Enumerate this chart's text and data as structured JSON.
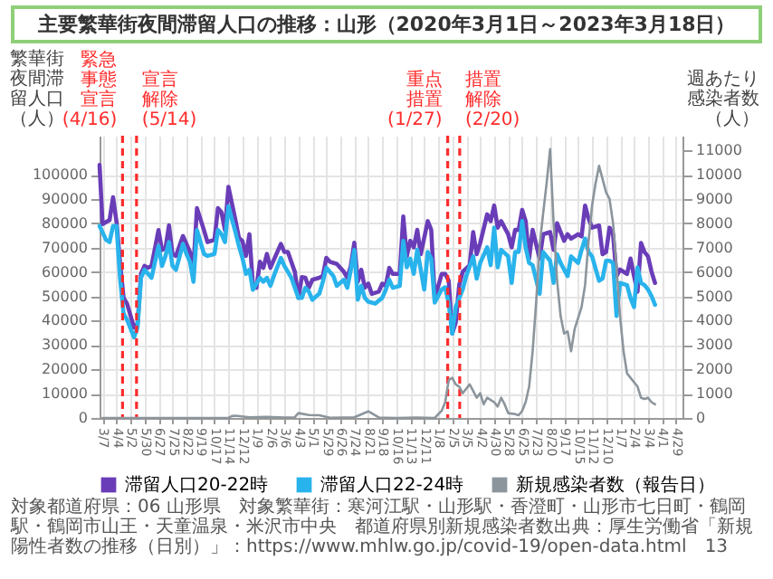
{
  "chart_data": {
    "type": "line",
    "title": "主要繁華街夜間滞留人口の推移：山形（2020年3月1日～2023年3月18日）",
    "ylabel": "繁華街夜間滞留人口（人）",
    "y2label": "週あたり感染者数（人）",
    "xlim": [
      "2020-03-01",
      "2023-05-12"
    ],
    "xticks": [
      {
        "value": "2020-03-07",
        "label": "3/7"
      },
      {
        "value": "2020-04-04",
        "label": "4/4"
      },
      {
        "value": "2020-05-02",
        "label": "5/2"
      },
      {
        "value": "2020-05-30",
        "label": "5/30"
      },
      {
        "value": "2020-06-27",
        "label": "6/27"
      },
      {
        "value": "2020-07-25",
        "label": "7/25"
      },
      {
        "value": "2020-08-22",
        "label": "8/22"
      },
      {
        "value": "2020-09-19",
        "label": "9/19"
      },
      {
        "value": "2020-10-17",
        "label": "10/17"
      },
      {
        "value": "2020-11-14",
        "label": "11/14"
      },
      {
        "value": "2020-12-12",
        "label": "12/12"
      },
      {
        "value": "2021-01-09",
        "label": "1/9"
      },
      {
        "value": "2021-02-06",
        "label": "2/6"
      },
      {
        "value": "2021-03-06",
        "label": "3/6"
      },
      {
        "value": "2021-04-03",
        "label": "4/3"
      },
      {
        "value": "2021-05-01",
        "label": "5/1"
      },
      {
        "value": "2021-05-29",
        "label": "5/29"
      },
      {
        "value": "2021-06-26",
        "label": "6/26"
      },
      {
        "value": "2021-07-24",
        "label": "7/24"
      },
      {
        "value": "2021-08-21",
        "label": "8/21"
      },
      {
        "value": "2021-09-18",
        "label": "9/18"
      },
      {
        "value": "2021-10-16",
        "label": "10/16"
      },
      {
        "value": "2021-11-13",
        "label": "11/13"
      },
      {
        "value": "2021-12-11",
        "label": "12/11"
      },
      {
        "value": "2022-01-08",
        "label": "1/8"
      },
      {
        "value": "2022-02-05",
        "label": "2/5"
      },
      {
        "value": "2022-03-05",
        "label": "3/5"
      },
      {
        "value": "2022-04-02",
        "label": "4/2"
      },
      {
        "value": "2022-04-30",
        "label": "4/30"
      },
      {
        "value": "2022-05-28",
        "label": "5/28"
      },
      {
        "value": "2022-06-25",
        "label": "6/25"
      },
      {
        "value": "2022-07-23",
        "label": "7/23"
      },
      {
        "value": "2022-08-20",
        "label": "8/20"
      },
      {
        "value": "2022-09-17",
        "label": "9/17"
      },
      {
        "value": "2022-10-15",
        "label": "10/15"
      },
      {
        "value": "2022-11-12",
        "label": "11/12"
      },
      {
        "value": "2022-12-10",
        "label": "12/10"
      },
      {
        "value": "2023-01-07",
        "label": "1/7"
      },
      {
        "value": "2023-02-04",
        "label": "2/4"
      },
      {
        "value": "2023-03-04",
        "label": "3/4"
      },
      {
        "value": "2023-04-01",
        "label": "4/1"
      },
      {
        "value": "2023-04-29",
        "label": "4/29"
      }
    ],
    "ylim": [
      0,
      116000
    ],
    "yticks": [
      0,
      10000,
      20000,
      30000,
      40000,
      50000,
      60000,
      70000,
      80000,
      90000,
      100000
    ],
    "y2lim": [
      0,
      11600
    ],
    "y2ticks": [
      0,
      1000,
      2000,
      3000,
      4000,
      5000,
      6000,
      7000,
      8000,
      9000,
      10000,
      11000
    ],
    "grid": true,
    "legend": "bottom",
    "series": [
      {
        "name": "滞留人口20-22時",
        "color": "#6a3db8",
        "x": [
          "2020-03-01",
          "2020-03-07",
          "2020-03-21",
          "2020-03-28",
          "2020-04-04",
          "2020-04-11",
          "2020-04-18",
          "2020-04-25",
          "2020-05-09",
          "2020-05-16",
          "2020-05-23",
          "2020-05-30",
          "2020-06-06",
          "2020-06-13",
          "2020-06-27",
          "2020-07-04",
          "2020-07-11",
          "2020-07-18",
          "2020-07-25",
          "2020-08-01",
          "2020-08-15",
          "2020-08-22",
          "2020-08-29",
          "2020-09-05",
          "2020-09-12",
          "2020-09-26",
          "2020-10-03",
          "2020-10-17",
          "2020-10-24",
          "2020-10-31",
          "2020-11-07",
          "2020-11-14",
          "2020-11-28",
          "2020-12-05",
          "2020-12-12",
          "2020-12-19",
          "2020-12-26",
          "2021-01-02",
          "2021-01-09",
          "2021-01-16",
          "2021-01-23",
          "2021-01-30",
          "2021-02-06",
          "2021-02-13",
          "2021-02-27",
          "2021-03-06",
          "2021-03-13",
          "2021-03-27",
          "2021-04-03",
          "2021-04-10",
          "2021-04-17",
          "2021-04-24",
          "2021-05-01",
          "2021-05-15",
          "2021-05-22",
          "2021-05-29",
          "2021-06-05",
          "2021-06-19",
          "2021-07-03",
          "2021-07-10",
          "2021-07-17",
          "2021-07-24",
          "2021-07-31",
          "2021-08-07",
          "2021-08-14",
          "2021-08-21",
          "2021-08-28",
          "2021-09-11",
          "2021-09-18",
          "2021-09-25",
          "2021-10-02",
          "2021-10-09",
          "2021-10-23",
          "2021-10-30",
          "2021-11-06",
          "2021-11-13",
          "2021-11-20",
          "2021-11-27",
          "2021-12-04",
          "2021-12-18",
          "2021-12-25",
          "2022-01-01",
          "2022-01-15",
          "2022-01-22",
          "2022-01-29",
          "2022-02-05",
          "2022-02-12",
          "2022-02-19",
          "2022-02-26",
          "2022-03-12",
          "2022-03-19",
          "2022-03-26",
          "2022-04-02",
          "2022-04-16",
          "2022-04-23",
          "2022-04-30",
          "2022-05-07",
          "2022-05-14",
          "2022-05-28",
          "2022-06-04",
          "2022-06-11",
          "2022-06-18",
          "2022-06-25",
          "2022-07-02",
          "2022-07-09",
          "2022-07-16",
          "2022-07-30",
          "2022-08-06",
          "2022-08-20",
          "2022-08-27",
          "2022-09-03",
          "2022-09-17",
          "2022-09-24",
          "2022-10-01",
          "2022-10-15",
          "2022-10-22",
          "2022-10-29",
          "2022-11-05",
          "2022-11-12",
          "2022-11-26",
          "2022-12-03",
          "2022-12-10",
          "2022-12-17",
          "2022-12-24",
          "2022-12-31",
          "2023-01-07",
          "2023-01-21",
          "2023-01-28",
          "2023-02-04",
          "2023-02-11",
          "2023-02-18",
          "2023-02-25",
          "2023-03-04",
          "2023-03-11",
          "2023-03-18"
        ],
        "values": [
          104000,
          79700,
          81300,
          90700,
          80500,
          64000,
          49400,
          47000,
          37100,
          38800,
          59200,
          62500,
          61700,
          62500,
          77200,
          69000,
          69900,
          79200,
          67400,
          66600,
          74800,
          71500,
          68200,
          62200,
          86200,
          77200,
          72300,
          73200,
          86200,
          84600,
          77200,
          95000,
          81300,
          74000,
          72700,
          66600,
          75500,
          54300,
          53500,
          64200,
          61700,
          67400,
          61700,
          65000,
          71500,
          68200,
          68200,
          60000,
          49400,
          57900,
          57600,
          53500,
          56800,
          57600,
          58400,
          65800,
          64200,
          63300,
          60100,
          57600,
          62500,
          72000,
          56000,
          60900,
          53500,
          55200,
          51000,
          51900,
          55200,
          54300,
          61700,
          59200,
          59200,
          82800,
          66400,
          72800,
          70100,
          77300,
          67300,
          80900,
          77300,
          49200,
          59200,
          59200,
          56400,
          34700,
          39200,
          54600,
          60100,
          62800,
          76400,
          67300,
          71900,
          83700,
          80900,
          87300,
          78200,
          80900,
          75500,
          70100,
          77300,
          77300,
          85500,
          80900,
          65500,
          77300,
          65500,
          75500,
          76400,
          69100,
          80000,
          72800,
          75500,
          73700,
          75500,
          74600,
          87300,
          81900,
          78200,
          79100,
          67300,
          68200,
          78200,
          75500,
          58300,
          61000,
          59200,
          65500,
          58300,
          51900,
          71900,
          68200,
          66400,
          60100,
          55500
        ]
      },
      {
        "name": "滞留人口22-24時",
        "color": "#29b3ec",
        "x": [
          "2020-03-01",
          "2020-03-14",
          "2020-03-21",
          "2020-03-28",
          "2020-04-04",
          "2020-04-11",
          "2020-04-18",
          "2020-04-25",
          "2020-05-09",
          "2020-05-16",
          "2020-05-23",
          "2020-05-30",
          "2020-06-13",
          "2020-06-27",
          "2020-07-04",
          "2020-07-11",
          "2020-07-18",
          "2020-07-25",
          "2020-08-01",
          "2020-08-15",
          "2020-08-22",
          "2020-08-29",
          "2020-09-05",
          "2020-09-12",
          "2020-09-26",
          "2020-10-03",
          "2020-10-17",
          "2020-10-24",
          "2020-10-31",
          "2020-11-07",
          "2020-11-14",
          "2020-11-28",
          "2020-12-05",
          "2020-12-12",
          "2020-12-19",
          "2020-12-26",
          "2021-01-02",
          "2021-01-16",
          "2021-01-23",
          "2021-01-30",
          "2021-02-06",
          "2021-02-13",
          "2021-02-27",
          "2021-03-06",
          "2021-03-20",
          "2021-04-03",
          "2021-04-10",
          "2021-04-17",
          "2021-04-24",
          "2021-05-01",
          "2021-05-15",
          "2021-05-22",
          "2021-05-29",
          "2021-06-12",
          "2021-06-19",
          "2021-07-03",
          "2021-07-10",
          "2021-07-17",
          "2021-07-24",
          "2021-07-31",
          "2021-08-07",
          "2021-08-14",
          "2021-08-21",
          "2021-09-04",
          "2021-09-18",
          "2021-09-25",
          "2021-10-02",
          "2021-10-09",
          "2021-10-23",
          "2021-10-30",
          "2021-11-06",
          "2021-11-13",
          "2021-11-20",
          "2021-11-27",
          "2021-12-11",
          "2021-12-18",
          "2021-12-25",
          "2022-01-01",
          "2022-01-15",
          "2022-01-22",
          "2022-01-29",
          "2022-02-05",
          "2022-02-12",
          "2022-02-26",
          "2022-03-05",
          "2022-03-19",
          "2022-03-26",
          "2022-04-02",
          "2022-04-16",
          "2022-04-23",
          "2022-04-30",
          "2022-05-07",
          "2022-05-14",
          "2022-05-28",
          "2022-06-04",
          "2022-06-11",
          "2022-06-18",
          "2022-06-25",
          "2022-07-02",
          "2022-07-09",
          "2022-07-16",
          "2022-07-30",
          "2022-08-06",
          "2022-08-20",
          "2022-08-27",
          "2022-09-03",
          "2022-09-10",
          "2022-09-24",
          "2022-10-01",
          "2022-10-15",
          "2022-10-22",
          "2022-10-29",
          "2022-11-05",
          "2022-11-12",
          "2022-11-26",
          "2022-12-03",
          "2022-12-10",
          "2022-12-17",
          "2022-12-24",
          "2022-12-31",
          "2023-01-07",
          "2023-01-21",
          "2023-01-28",
          "2023-02-04",
          "2023-02-11",
          "2023-02-18",
          "2023-02-25",
          "2023-03-04",
          "2023-03-11",
          "2023-03-18"
        ],
        "values": [
          78900,
          73200,
          72300,
          78900,
          78900,
          57600,
          42900,
          40400,
          33100,
          37100,
          57600,
          60900,
          57600,
          70700,
          62500,
          66600,
          72300,
          62500,
          60900,
          71500,
          67400,
          64200,
          56000,
          77200,
          67400,
          66600,
          67400,
          77200,
          75600,
          72300,
          87000,
          76400,
          70700,
          65800,
          59200,
          60900,
          52700,
          57600,
          56000,
          57600,
          54300,
          58400,
          65800,
          62500,
          57600,
          49400,
          49400,
          53500,
          51900,
          48600,
          51100,
          56000,
          61700,
          58400,
          54300,
          56800,
          53500,
          60900,
          69000,
          48600,
          54300,
          49400,
          47800,
          47000,
          49400,
          52700,
          56800,
          53500,
          54300,
          72800,
          61900,
          65500,
          59200,
          69100,
          52800,
          68200,
          65500,
          47400,
          52800,
          53700,
          47000,
          34700,
          45600,
          52800,
          58300,
          66400,
          57300,
          63700,
          70100,
          62800,
          78200,
          61900,
          69100,
          66400,
          55500,
          68200,
          68200,
          80900,
          70100,
          63700,
          62800,
          51000,
          68200,
          64600,
          55500,
          67300,
          63700,
          58300,
          66400,
          63700,
          69100,
          73700,
          68200,
          66400,
          56400,
          57300,
          64600,
          64600,
          63700,
          41900,
          55500,
          54600,
          49200,
          45600,
          61900,
          55500,
          54600,
          52800,
          50100,
          46500
        ]
      },
      {
        "name": "新規感染者数（報告日）",
        "color": "#8c959c",
        "axis": "y2",
        "x": [
          "2020-03-07",
          "2020-11-14",
          "2020-11-21",
          "2020-11-28",
          "2020-12-26",
          "2021-01-30",
          "2021-03-06",
          "2021-03-27",
          "2021-04-03",
          "2021-04-24",
          "2021-05-15",
          "2021-06-05",
          "2021-07-24",
          "2021-08-21",
          "2021-09-11",
          "2021-10-16",
          "2021-11-27",
          "2022-01-01",
          "2022-01-15",
          "2022-01-22",
          "2022-01-29",
          "2022-02-05",
          "2022-02-12",
          "2022-02-19",
          "2022-02-26",
          "2022-03-05",
          "2022-03-12",
          "2022-03-19",
          "2022-03-26",
          "2022-04-02",
          "2022-04-09",
          "2022-04-16",
          "2022-04-23",
          "2022-04-30",
          "2022-05-07",
          "2022-05-14",
          "2022-05-21",
          "2022-05-28",
          "2022-06-11",
          "2022-06-18",
          "2022-06-25",
          "2022-07-02",
          "2022-07-09",
          "2022-07-16",
          "2022-07-23",
          "2022-07-30",
          "2022-08-06",
          "2022-08-13",
          "2022-08-20",
          "2022-08-27",
          "2022-09-03",
          "2022-09-10",
          "2022-09-17",
          "2022-09-24",
          "2022-10-01",
          "2022-10-08",
          "2022-10-22",
          "2022-10-29",
          "2022-11-05",
          "2022-11-12",
          "2022-11-19",
          "2022-11-26",
          "2022-12-03",
          "2022-12-10",
          "2022-12-17",
          "2022-12-24",
          "2022-12-31",
          "2023-01-07",
          "2023-01-14",
          "2023-01-21",
          "2023-01-28",
          "2023-02-11",
          "2023-02-18",
          "2023-02-25",
          "2023-03-04",
          "2023-03-11",
          "2023-03-18"
        ],
        "values": [
          0,
          0,
          80,
          90,
          30,
          40,
          20,
          30,
          200,
          120,
          110,
          10,
          30,
          270,
          20,
          0,
          20,
          0,
          300,
          650,
          1560,
          1650,
          1380,
          1290,
          1020,
          1200,
          1380,
          1110,
          830,
          1020,
          560,
          830,
          740,
          650,
          470,
          830,
          560,
          200,
          160,
          110,
          290,
          650,
          1290,
          2740,
          4740,
          7100,
          8400,
          9640,
          11050,
          8000,
          5640,
          4190,
          3470,
          3560,
          2740,
          3650,
          4560,
          5460,
          7280,
          8730,
          9640,
          10360,
          9820,
          9270,
          9000,
          8000,
          6190,
          4190,
          2740,
          1830,
          1650,
          1290,
          830,
          780,
          830,
          650,
          560
        ]
      }
    ],
    "ref_lines": [
      {
        "axis": "x",
        "value": "2020-04-16",
        "label": "緊急事態宣言(4/16)",
        "color": "#ff2b2b",
        "line_style": "dashed"
      },
      {
        "axis": "x",
        "value": "2020-05-14",
        "label": "宣言解除(5/14)",
        "color": "#ff2b2b",
        "line_style": "dashed"
      },
      {
        "axis": "x",
        "value": "2022-01-27",
        "label": "重点措置(1/27)",
        "color": "#ff2b2b",
        "line_style": "dashed"
      },
      {
        "axis": "x",
        "value": "2022-02-20",
        "label": "措置解除(2/20)",
        "color": "#ff2b2b",
        "line_style": "dashed"
      }
    ],
    "annotations": [
      "対象都道府県：06 山形県",
      "対象繁華街：寒河江駅・山形駅・香澄町・山形市七日町・鶴岡駅・鶴岡市山王・天童温泉・米沢市中央",
      "都道府県別新規感染者数出典：厚生労働省「新規陽性者数の推移（日別）」：https://www.mhlw.go.jp/covid-19/open-data.html",
      "13"
    ]
  }
}
